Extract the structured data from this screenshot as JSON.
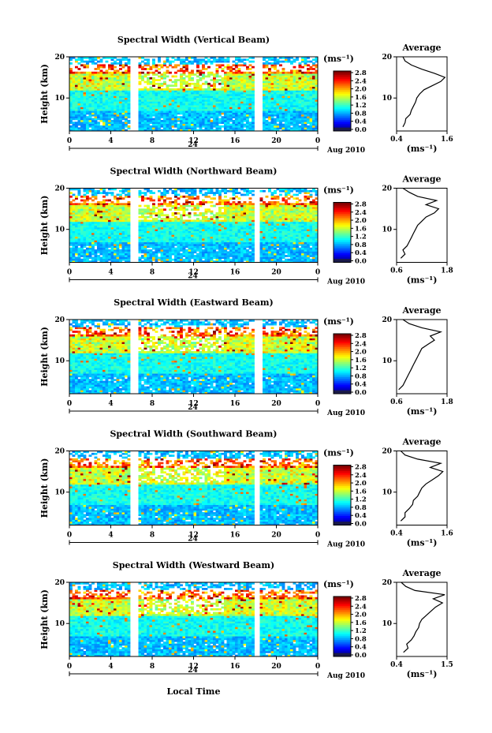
{
  "chart_data": [
    {
      "type": "heatmap",
      "title": "Spectral Width (Vertical Beam)",
      "ylabel": "Height (km)",
      "yticks": [
        "10",
        "20"
      ],
      "xticks": [
        "0",
        "4",
        "8",
        "12",
        "16",
        "20",
        "0"
      ],
      "date_label": "24",
      "month_label": "Aug 2010",
      "colorbar_unit": "(ms⁻¹)",
      "colorbar_ticks": [
        "0.0",
        "0.4",
        "0.8",
        "1.2",
        "1.6",
        "2.0",
        "2.4",
        "2.8"
      ],
      "gaps_hours": [
        [
          5.9,
          6.6
        ],
        [
          18.0,
          18.6
        ]
      ],
      "profile": {
        "title": "Average",
        "xlabel": "(ms⁻¹)",
        "xticks": [
          "0.4",
          "1.6"
        ],
        "xlim": [
          0.4,
          1.6
        ],
        "yticks": [
          "10",
          "20"
        ],
        "heights_km": [
          3,
          4,
          5,
          6,
          7,
          8,
          9,
          10,
          11,
          12,
          13,
          14,
          15,
          16,
          17,
          18,
          19,
          20
        ],
        "values": [
          0.55,
          0.6,
          0.62,
          0.72,
          0.75,
          0.8,
          0.85,
          0.88,
          0.95,
          1.05,
          1.25,
          1.45,
          1.55,
          1.3,
          1.0,
          0.75,
          0.6,
          0.55
        ]
      }
    },
    {
      "type": "heatmap",
      "title": "Spectral Width (Northward Beam)",
      "ylabel": "Height (km)",
      "yticks": [
        "10",
        "20"
      ],
      "xticks": [
        "0",
        "4",
        "8",
        "12",
        "16",
        "20",
        "0"
      ],
      "date_label": "24",
      "month_label": "Aug 2010",
      "colorbar_unit": "(ms⁻¹)",
      "colorbar_ticks": [
        "0.0",
        "0.4",
        "0.8",
        "1.2",
        "1.6",
        "2.0",
        "2.4",
        "2.8"
      ],
      "gaps_hours": [
        [
          5.9,
          6.6
        ],
        [
          17.8,
          18.4
        ]
      ],
      "profile": {
        "title": "Average",
        "xlabel": "(ms⁻¹)",
        "xticks": [
          "0.6",
          "1.8"
        ],
        "xlim": [
          0.6,
          1.8
        ],
        "yticks": [
          "10",
          "20"
        ],
        "heights_km": [
          3,
          4,
          5,
          6,
          7,
          8,
          9,
          10,
          11,
          12,
          13,
          14,
          15,
          16,
          17,
          18,
          19,
          20
        ],
        "values": [
          0.7,
          0.8,
          0.75,
          0.85,
          0.9,
          0.95,
          1.0,
          1.05,
          1.1,
          1.2,
          1.3,
          1.5,
          1.6,
          1.3,
          1.55,
          1.1,
          0.9,
          0.75
        ]
      }
    },
    {
      "type": "heatmap",
      "title": "Spectral Width (Eastward Beam)",
      "ylabel": "Height (km)",
      "yticks": [
        "10",
        "20"
      ],
      "xticks": [
        "0",
        "4",
        "8",
        "12",
        "16",
        "20",
        "0"
      ],
      "date_label": "24",
      "month_label": "Aug 2010",
      "colorbar_unit": "(ms⁻¹)",
      "colorbar_ticks": [
        "0.0",
        "0.4",
        "0.8",
        "1.2",
        "1.6",
        "2.0",
        "2.4",
        "2.8"
      ],
      "gaps_hours": [
        [
          5.9,
          6.6
        ],
        [
          18.0,
          18.6
        ]
      ],
      "profile": {
        "title": "Average",
        "xlabel": "(ms⁻¹)",
        "xticks": [
          "0.6",
          "1.8"
        ],
        "xlim": [
          0.6,
          1.8
        ],
        "yticks": [
          "10",
          "20"
        ],
        "heights_km": [
          3,
          4,
          5,
          6,
          7,
          8,
          9,
          10,
          11,
          12,
          13,
          14,
          15,
          16,
          17,
          18,
          19,
          20
        ],
        "values": [
          0.65,
          0.75,
          0.8,
          0.85,
          0.9,
          0.95,
          1.0,
          1.05,
          1.1,
          1.15,
          1.2,
          1.35,
          1.5,
          1.4,
          1.65,
          1.2,
          0.9,
          0.75
        ]
      }
    },
    {
      "type": "heatmap",
      "title": "Spectral Width (Southward Beam)",
      "ylabel": "Height (km)",
      "yticks": [
        "10",
        "20"
      ],
      "xticks": [
        "0",
        "4",
        "8",
        "12",
        "16",
        "20",
        "0"
      ],
      "date_label": "24",
      "month_label": "Aug 2010",
      "colorbar_unit": "(ms⁻¹)",
      "colorbar_ticks": [
        "0.0",
        "0.4",
        "0.8",
        "1.2",
        "1.6",
        "2.0",
        "2.4",
        "2.8"
      ],
      "gaps_hours": [
        [
          5.9,
          6.6
        ],
        [
          17.9,
          18.5
        ]
      ],
      "profile": {
        "title": "Average",
        "xlabel": "(ms⁻¹)",
        "xticks": [
          "0.4",
          "1.6"
        ],
        "xlim": [
          0.4,
          1.6
        ],
        "yticks": [
          "10",
          "20"
        ],
        "heights_km": [
          3,
          4,
          5,
          6,
          7,
          8,
          9,
          10,
          11,
          12,
          13,
          14,
          15,
          16,
          17,
          18,
          19,
          20
        ],
        "values": [
          0.5,
          0.6,
          0.6,
          0.7,
          0.78,
          0.8,
          0.9,
          0.95,
          1.0,
          1.1,
          1.25,
          1.4,
          1.5,
          1.2,
          1.45,
          0.9,
          0.6,
          0.5
        ]
      }
    },
    {
      "type": "heatmap",
      "title": "Spectral Width (Westward Beam)",
      "ylabel": "Height (km)",
      "yticks": [
        "10",
        "20"
      ],
      "xticks": [
        "0",
        "4",
        "8",
        "12",
        "16",
        "20",
        "0"
      ],
      "date_label": "24",
      "month_label": "Aug 2010",
      "colorbar_unit": "(ms⁻¹)",
      "colorbar_ticks": [
        "0.0",
        "0.4",
        "0.8",
        "1.2",
        "1.6",
        "2.0",
        "2.4",
        "2.8"
      ],
      "gaps_hours": [
        [
          5.9,
          6.6
        ],
        [
          17.9,
          18.5
        ]
      ],
      "profile": {
        "title": "Average",
        "xlabel": "(ms⁻¹)",
        "xticks": [
          "0.4",
          "1.5"
        ],
        "xlim": [
          0.4,
          1.5
        ],
        "yticks": [
          "10",
          "20"
        ],
        "heights_km": [
          3,
          4,
          5,
          6,
          7,
          8,
          9,
          10,
          11,
          12,
          13,
          14,
          15,
          16,
          17,
          18,
          19,
          20
        ],
        "values": [
          0.55,
          0.65,
          0.62,
          0.72,
          0.78,
          0.82,
          0.88,
          0.9,
          0.95,
          1.05,
          1.15,
          1.25,
          1.4,
          1.2,
          1.45,
          0.8,
          0.6,
          0.5
        ]
      }
    }
  ],
  "footer": {
    "xlabel": "Local Time"
  }
}
